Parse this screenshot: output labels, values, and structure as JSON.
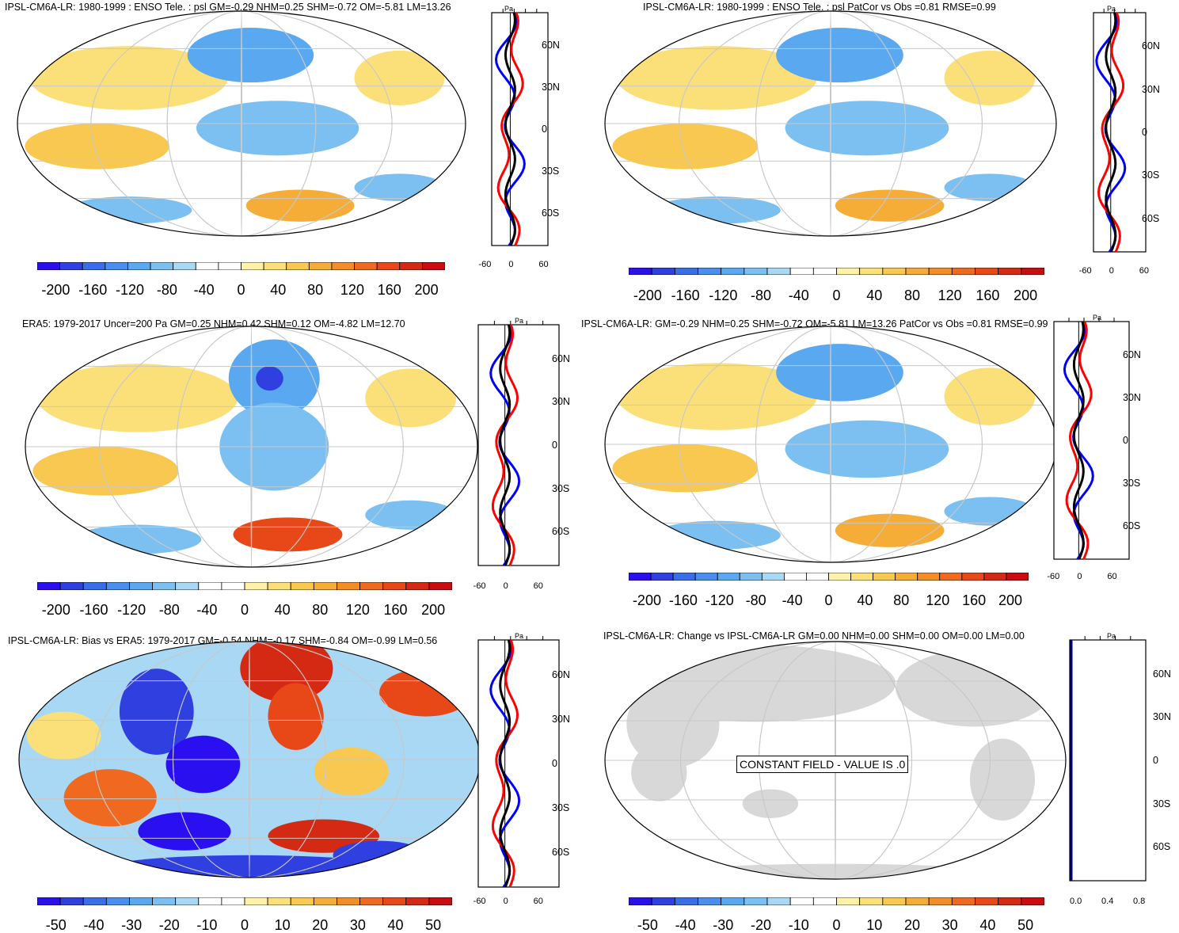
{
  "panels": [
    {
      "id": "model",
      "title": "IPSL-CM6A-LR: 1980-1999 : ENSO Tele. : psl GM=-0.29 NHM=0.25 SHM=-0.72 OM=-5.81 LM=13.26",
      "colorbar_labels": [
        "-200",
        "-160",
        "-120",
        "-80",
        "-40",
        "0",
        "40",
        "80",
        "120",
        "160",
        "200"
      ],
      "profile_unit": "Pa",
      "profile_ticks": [
        "-60",
        "0",
        "60"
      ],
      "lat_ticks": [
        "60N",
        "30N",
        "0",
        "30S",
        "60S"
      ]
    },
    {
      "id": "model-vs-obs",
      "title": "IPSL-CM6A-LR: 1980-1999 : ENSO Tele. : psl PatCor vs Obs =0.81 RMSE=0.99",
      "colorbar_labels": [
        "-200",
        "-160",
        "-120",
        "-80",
        "-40",
        "0",
        "40",
        "80",
        "120",
        "160",
        "200"
      ],
      "profile_unit": "Pa",
      "profile_ticks": [
        "-60",
        "0",
        "60"
      ],
      "lat_ticks": [
        "60N",
        "30N",
        "0",
        "30S",
        "60S"
      ]
    },
    {
      "id": "era5",
      "title": "ERA5: 1979-2017 Uncer=200 Pa GM=0.25 NHM=0.42 SHM=0.12 OM=-4.82 LM=12.70",
      "colorbar_labels": [
        "-200",
        "-160",
        "-120",
        "-80",
        "-40",
        "0",
        "40",
        "80",
        "120",
        "160",
        "200"
      ],
      "profile_unit": "Pa",
      "profile_ticks": [
        "-60",
        "0",
        "60"
      ],
      "lat_ticks": [
        "60N",
        "30N",
        "0",
        "30S",
        "60S"
      ]
    },
    {
      "id": "model-patcor",
      "title": "IPSL-CM6A-LR: GM=-0.29 NHM=0.25 SHM=-0.72 OM=-5.81 LM=13.26 PatCor vs Obs =0.81 RMSE=0.99",
      "colorbar_labels": [
        "-200",
        "-160",
        "-120",
        "-80",
        "-40",
        "0",
        "40",
        "80",
        "120",
        "160",
        "200"
      ],
      "profile_unit": "Pa",
      "profile_ticks": [
        "-60",
        "0",
        "60"
      ],
      "lat_ticks": [
        "60N",
        "30N",
        "0",
        "30S",
        "60S"
      ]
    },
    {
      "id": "bias",
      "title": "IPSL-CM6A-LR: Bias vs ERA5: 1979-2017 GM=-0.54 NHM=-0.17 SHM=-0.84 OM=-0.99 LM=0.56",
      "colorbar_labels": [
        "-50",
        "-40",
        "-30",
        "-20",
        "-10",
        "0",
        "10",
        "20",
        "30",
        "40",
        "50"
      ],
      "profile_unit": "Pa",
      "profile_ticks": [
        "-60",
        "0",
        "60"
      ],
      "lat_ticks": [
        "60N",
        "30N",
        "0",
        "30S",
        "60S"
      ]
    },
    {
      "id": "change",
      "title": "IPSL-CM6A-LR: Change vs IPSL-CM6A-LR GM=0.00 NHM=0.00 SHM=0.00 OM=0.00 LM=0.00",
      "colorbar_labels": [
        "-50",
        "-40",
        "-30",
        "-20",
        "-10",
        "0",
        "10",
        "20",
        "30",
        "40",
        "50"
      ],
      "profile_unit": "Pa",
      "profile_ticks": [
        "0.0",
        "0.4",
        "0.8"
      ],
      "lat_ticks": [
        "60N",
        "30N",
        "0",
        "30S",
        "60S"
      ],
      "constant_text": "CONSTANT FIELD - VALUE IS .0"
    }
  ],
  "colors": {
    "scale": [
      "#2a0ff0",
      "#2f3fe0",
      "#3a6ee8",
      "#4a8ef0",
      "#59a8f0",
      "#7cc0f2",
      "#a8d8f4",
      "#ffffff",
      "#ffffff",
      "#fff2a8",
      "#fbe07a",
      "#f8c850",
      "#f6ad38",
      "#f48c28",
      "#ef6a20",
      "#e84818",
      "#d42a14",
      "#c80c10"
    ],
    "profile_model": "#ff0000",
    "profile_obs": "#0000ff",
    "profile_bias": "#000000",
    "land_constant": "#d8d8d8"
  }
}
